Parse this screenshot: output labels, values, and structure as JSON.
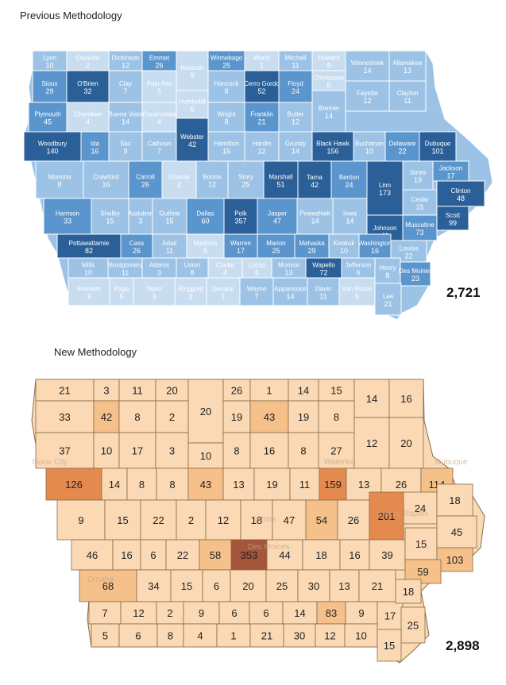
{
  "previous": {
    "title": "Previous Methodology",
    "total": "2,721",
    "colors": {
      "c1": "#c9ddf1",
      "c2": "#9cc3e6",
      "c3": "#5b95cd",
      "c4": "#2b5f98"
    },
    "counties": [
      {
        "name": "Lyon",
        "value": "10"
      },
      {
        "name": "Osceola",
        "value": "2"
      },
      {
        "name": "Dickinson",
        "value": "12"
      },
      {
        "name": "Emmet",
        "value": "26"
      },
      {
        "name": "Kossuth",
        "value": "9"
      },
      {
        "name": "Winnebago",
        "value": "25"
      },
      {
        "name": "Worth",
        "value": "1"
      },
      {
        "name": "Mitchell",
        "value": "11"
      },
      {
        "name": "Howard",
        "value": "9"
      },
      {
        "name": "Winneshiek",
        "value": "14"
      },
      {
        "name": "Allamakee",
        "value": "13"
      },
      {
        "name": "Sioux",
        "value": "29"
      },
      {
        "name": "O'Brien",
        "value": "32"
      },
      {
        "name": "Clay",
        "value": "7"
      },
      {
        "name": "Palo Alto",
        "value": "5"
      },
      {
        "name": "Hancock",
        "value": "8"
      },
      {
        "name": "Cerro Gordo",
        "value": "52"
      },
      {
        "name": "Floyd",
        "value": "24"
      },
      {
        "name": "Chickasaw",
        "value": "6"
      },
      {
        "name": "Fayette",
        "value": "12"
      },
      {
        "name": "Clayton",
        "value": "11"
      },
      {
        "name": "Plymouth",
        "value": "45"
      },
      {
        "name": "Cherokee",
        "value": "4"
      },
      {
        "name": "Buena Vista",
        "value": "14"
      },
      {
        "name": "Pocahontas",
        "value": "4"
      },
      {
        "name": "Humboldt",
        "value": "6"
      },
      {
        "name": "Wright",
        "value": "8"
      },
      {
        "name": "Franklin",
        "value": "21"
      },
      {
        "name": "Butler",
        "value": "12"
      },
      {
        "name": "Bremer",
        "value": "14"
      },
      {
        "name": "Woodbury",
        "value": "140"
      },
      {
        "name": "Ida",
        "value": "16"
      },
      {
        "name": "Sac",
        "value": "9"
      },
      {
        "name": "Calhoun",
        "value": "7"
      },
      {
        "name": "Webster",
        "value": "42"
      },
      {
        "name": "Hamilton",
        "value": "15"
      },
      {
        "name": "Hardin",
        "value": "12"
      },
      {
        "name": "Grundy",
        "value": "14"
      },
      {
        "name": "Black Hawk",
        "value": "156"
      },
      {
        "name": "Buchanan",
        "value": "10"
      },
      {
        "name": "Delaware",
        "value": "22"
      },
      {
        "name": "Dubuque",
        "value": "101"
      },
      {
        "name": "Monona",
        "value": "8"
      },
      {
        "name": "Crawford",
        "value": "16"
      },
      {
        "name": "Carroll",
        "value": "26"
      },
      {
        "name": "Greene",
        "value": "2"
      },
      {
        "name": "Boone",
        "value": "12"
      },
      {
        "name": "Story",
        "value": "25"
      },
      {
        "name": "Marshall",
        "value": "51"
      },
      {
        "name": "Tama",
        "value": "42"
      },
      {
        "name": "Benton",
        "value": "24"
      },
      {
        "name": "Linn",
        "value": "173"
      },
      {
        "name": "Jones",
        "value": "19"
      },
      {
        "name": "Jackson",
        "value": "17"
      },
      {
        "name": "Clinton",
        "value": "48"
      },
      {
        "name": "Harrison",
        "value": "33"
      },
      {
        "name": "Shelby",
        "value": "15"
      },
      {
        "name": "Audubon",
        "value": "3"
      },
      {
        "name": "Guthrie",
        "value": "15"
      },
      {
        "name": "Dallas",
        "value": "60"
      },
      {
        "name": "Polk",
        "value": "357"
      },
      {
        "name": "Jasper",
        "value": "47"
      },
      {
        "name": "Poweshiek",
        "value": "14"
      },
      {
        "name": "Iowa",
        "value": "14"
      },
      {
        "name": "Johnson",
        "value": "41"
      },
      {
        "name": "Cedar",
        "value": "15"
      },
      {
        "name": "Scott",
        "value": "99"
      },
      {
        "name": "Pottawattamie",
        "value": "82"
      },
      {
        "name": "Cass",
        "value": "26"
      },
      {
        "name": "Adair",
        "value": "11"
      },
      {
        "name": "Madison",
        "value": "5"
      },
      {
        "name": "Warren",
        "value": "17"
      },
      {
        "name": "Marion",
        "value": "25"
      },
      {
        "name": "Mahaska",
        "value": "29"
      },
      {
        "name": "Keokuk",
        "value": "10"
      },
      {
        "name": "Washington",
        "value": "16"
      },
      {
        "name": "Muscatine",
        "value": "73"
      },
      {
        "name": "Louisa",
        "value": "22"
      },
      {
        "name": "Mills",
        "value": "10"
      },
      {
        "name": "Montgomery",
        "value": "11"
      },
      {
        "name": "Adams",
        "value": "3"
      },
      {
        "name": "Union",
        "value": "8"
      },
      {
        "name": "Clarke",
        "value": "4"
      },
      {
        "name": "Lucas",
        "value": "6"
      },
      {
        "name": "Monroe",
        "value": "13"
      },
      {
        "name": "Wapello",
        "value": "72"
      },
      {
        "name": "Jefferson",
        "value": "6"
      },
      {
        "name": "Henry",
        "value": "8"
      },
      {
        "name": "Des Moines",
        "value": "23"
      },
      {
        "name": "Fremont",
        "value": "3"
      },
      {
        "name": "Page",
        "value": "5"
      },
      {
        "name": "Taylor",
        "value": "3"
      },
      {
        "name": "Ringgold",
        "value": "2"
      },
      {
        "name": "Decatur",
        "value": "1"
      },
      {
        "name": "Wayne",
        "value": "7"
      },
      {
        "name": "Appanoose",
        "value": "14"
      },
      {
        "name": "Davis",
        "value": "11"
      },
      {
        "name": "Van Buren",
        "value": "5"
      },
      {
        "name": "Lee",
        "value": "21"
      }
    ]
  },
  "new": {
    "title": "New Methodology",
    "total": "2,898",
    "colors": {
      "c1": "#fad9b4",
      "c2": "#f5c08a",
      "c3": "#e58a4e",
      "c4": "#a5553a"
    },
    "values": [
      "21",
      "3",
      "11",
      "20",
      "20",
      "26",
      "1",
      "14",
      "15",
      "14",
      "16",
      "33",
      "42",
      "8",
      "2",
      "19",
      "43",
      "19",
      "8",
      "37",
      "10",
      "17",
      "3",
      "10",
      "8",
      "16",
      "8",
      "27",
      "12",
      "20",
      "126",
      "14",
      "8",
      "8",
      "43",
      "13",
      "19",
      "11",
      "159",
      "13",
      "26",
      "114",
      "9",
      "15",
      "22",
      "2",
      "12",
      "18",
      "47",
      "54",
      "26",
      "201",
      "24",
      "18",
      "46",
      "16",
      "6",
      "22",
      "58",
      "353",
      "44",
      "18",
      "16",
      "39",
      "15",
      "45",
      "103",
      "68",
      "34",
      "15",
      "6",
      "20",
      "25",
      "30",
      "13",
      "21",
      "59",
      "7",
      "12",
      "2",
      "9",
      "6",
      "6",
      "14",
      "83",
      "9",
      "17",
      "18",
      "5",
      "6",
      "8",
      "4",
      "1",
      "21",
      "30",
      "12",
      "10",
      "25",
      "15"
    ],
    "overlay_labels": [
      "Sioux City",
      "Waterloo",
      "Cedar Rapids",
      "Dubuque",
      "Ames",
      "Des Moines",
      "Omaha"
    ]
  }
}
